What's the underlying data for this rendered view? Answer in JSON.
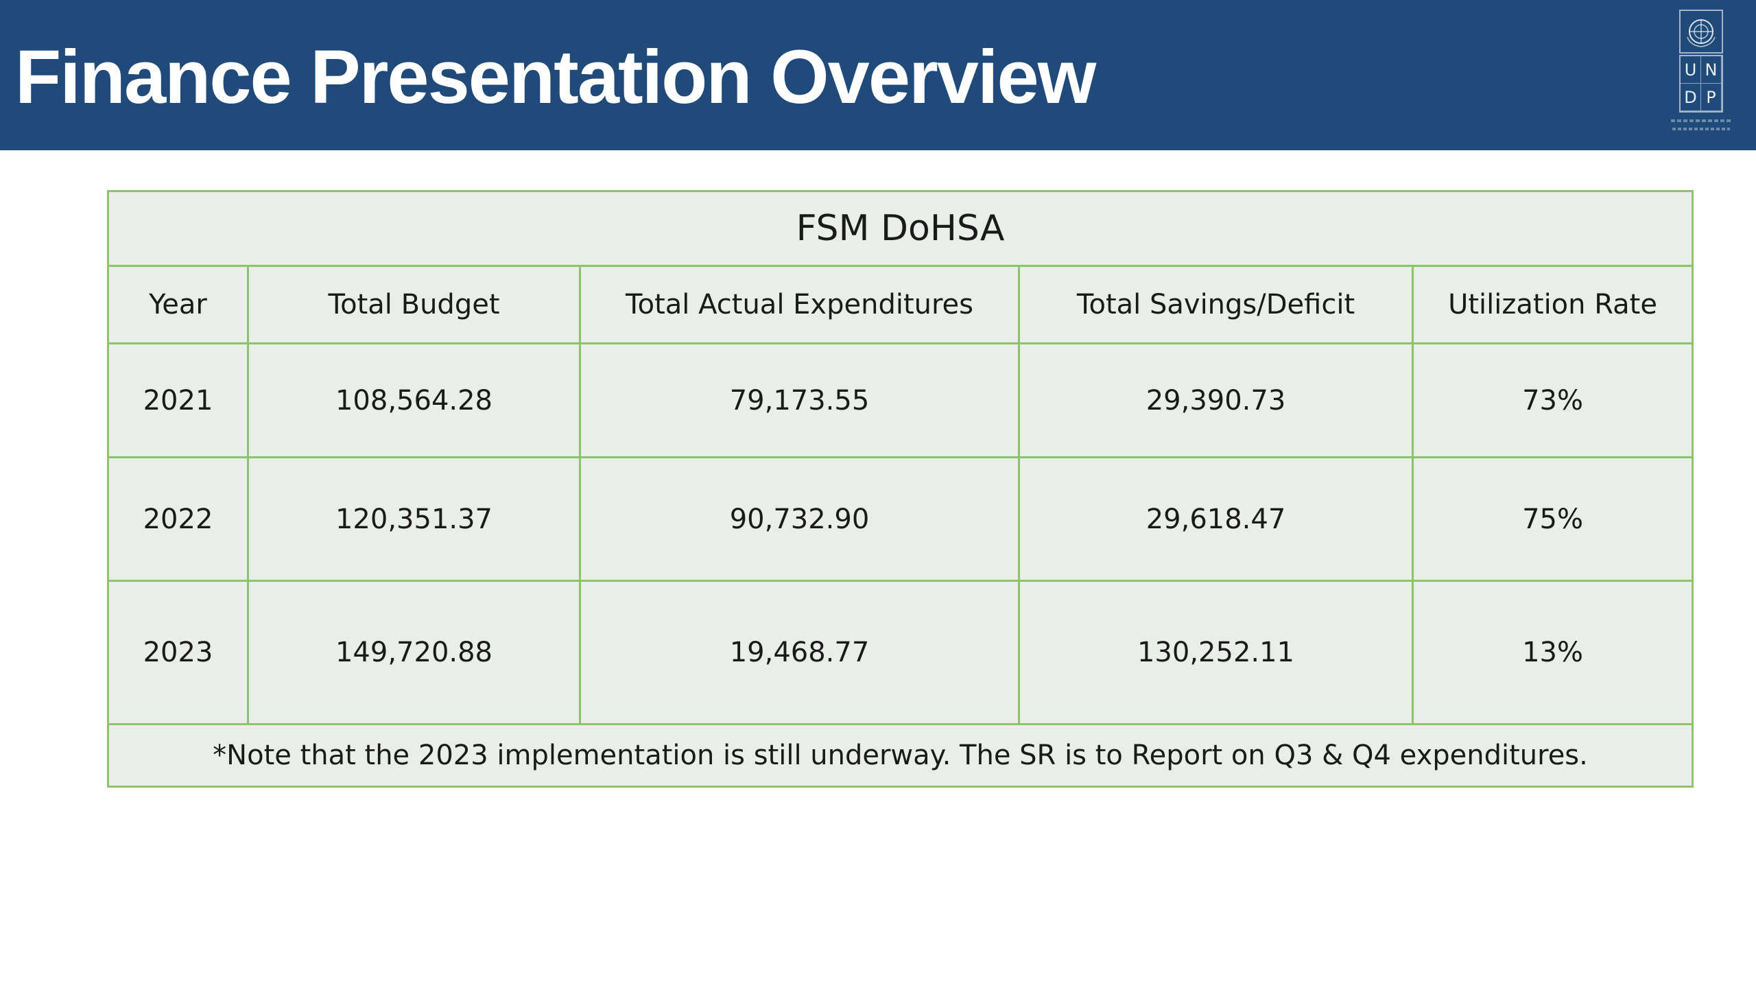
{
  "slide": {
    "title": "Finance Presentation Overview"
  },
  "logo": {
    "name": "undp-logo",
    "letters": [
      "U",
      "N",
      "D",
      "P"
    ]
  },
  "table": {
    "caption": "FSM DoHSA",
    "columns": [
      "Year",
      "Total Budget",
      "Total Actual Expenditures",
      "Total Savings/Deficit",
      "Utilization Rate"
    ],
    "rows": [
      {
        "year": "2021",
        "total_budget": "108,564.28",
        "total_actual_expenditures": "79,173.55",
        "total_savings_deficit": "29,390.73",
        "utilization_rate": "73%"
      },
      {
        "year": "2022",
        "total_budget": "120,351.37",
        "total_actual_expenditures": "90,732.90",
        "total_savings_deficit": "29,618.47",
        "utilization_rate": "75%"
      },
      {
        "year": "2023",
        "total_budget": "149,720.88",
        "total_actual_expenditures": "19,468.77",
        "total_savings_deficit": "130,252.11",
        "utilization_rate": "13%"
      }
    ],
    "note": "*Note that the 2023 implementation is still underway. The SR is to Report on Q3 & Q4 expenditures."
  },
  "colors": {
    "header_background": "#1f4a7a",
    "table_background": "#eaeee8",
    "table_border": "#8cc36b"
  }
}
